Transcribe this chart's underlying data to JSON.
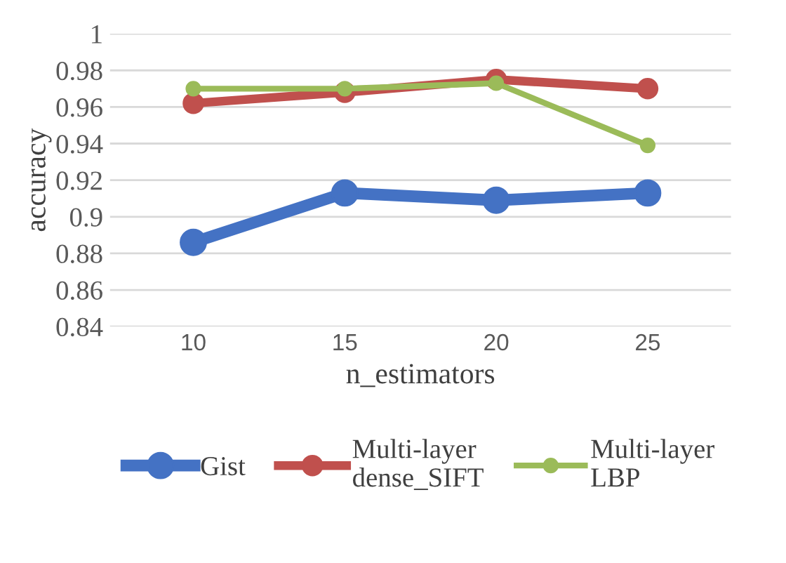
{
  "chart_data": {
    "type": "line",
    "xlabel": "n_estimators",
    "ylabel": "accuracy",
    "categories": [
      "10",
      "15",
      "20",
      "25"
    ],
    "ylim": [
      0.84,
      1
    ],
    "yticks": [
      {
        "value": 0.84,
        "label": "0.84"
      },
      {
        "value": 0.86,
        "label": "0.86"
      },
      {
        "value": 0.88,
        "label": "0.88"
      },
      {
        "value": 0.9,
        "label": "0.9"
      },
      {
        "value": 0.92,
        "label": "0.92"
      },
      {
        "value": 0.94,
        "label": "0.94"
      },
      {
        "value": 0.96,
        "label": "0.96"
      },
      {
        "value": 0.98,
        "label": "0.98"
      },
      {
        "value": 1,
        "label": "1"
      }
    ],
    "grid": "y",
    "legend": "bottom",
    "marker": "circle",
    "line_style": "solid",
    "series": [
      {
        "name": "Gist",
        "color": "#4472c4",
        "values": [
          0.886,
          0.913,
          0.909,
          0.913
        ]
      },
      {
        "name": "Multi-layer\ndense_SIFT",
        "color": "#c0504d",
        "values": [
          0.962,
          0.968,
          0.975,
          0.97
        ]
      },
      {
        "name": "Multi-layer\nLBP",
        "color": "#9bbb59",
        "values": [
          0.97,
          0.97,
          0.973,
          0.939
        ]
      }
    ]
  }
}
